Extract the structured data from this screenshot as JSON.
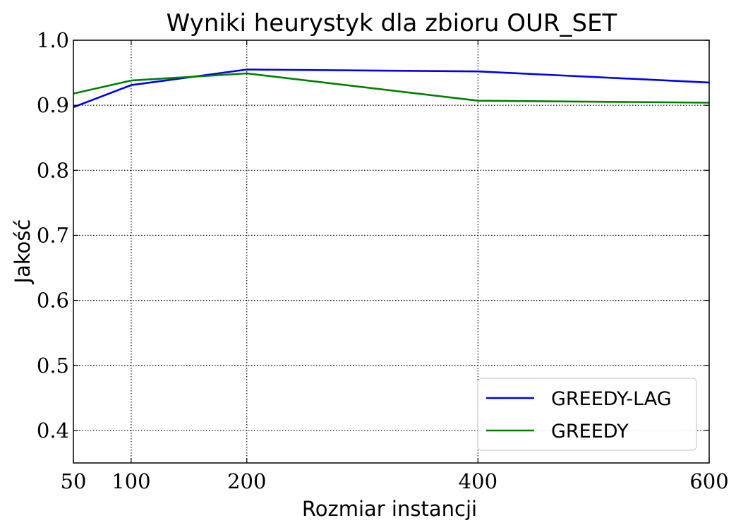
{
  "chart_data": {
    "type": "line",
    "title": "Wyniki heurystyk dla zbioru OUR_SET",
    "xlabel": "Rozmiar instancji",
    "ylabel": "Jakość",
    "x": [
      50,
      100,
      200,
      400,
      600
    ],
    "xticks": [
      50,
      100,
      200,
      400,
      600
    ],
    "xtick_labels": [
      "50",
      "100",
      "200",
      "400",
      "600"
    ],
    "yticks": [
      0.4,
      0.5,
      0.6,
      0.7,
      0.8,
      0.9,
      1.0
    ],
    "ytick_labels": [
      "0.4",
      "0.5",
      "0.6",
      "0.7",
      "0.8",
      "0.9",
      "1.0"
    ],
    "xlim": [
      50,
      600
    ],
    "ylim": [
      0.35,
      1.0
    ],
    "grid": true,
    "grid_style": "dotted",
    "legend_position": "lower-right",
    "series": [
      {
        "name": "GREEDY-LAG",
        "color": "#0000ee",
        "values": [
          0.897,
          0.931,
          0.955,
          0.952,
          0.935
        ]
      },
      {
        "name": "GREEDY",
        "color": "#007f00",
        "values": [
          0.918,
          0.938,
          0.949,
          0.907,
          0.904
        ]
      }
    ]
  }
}
